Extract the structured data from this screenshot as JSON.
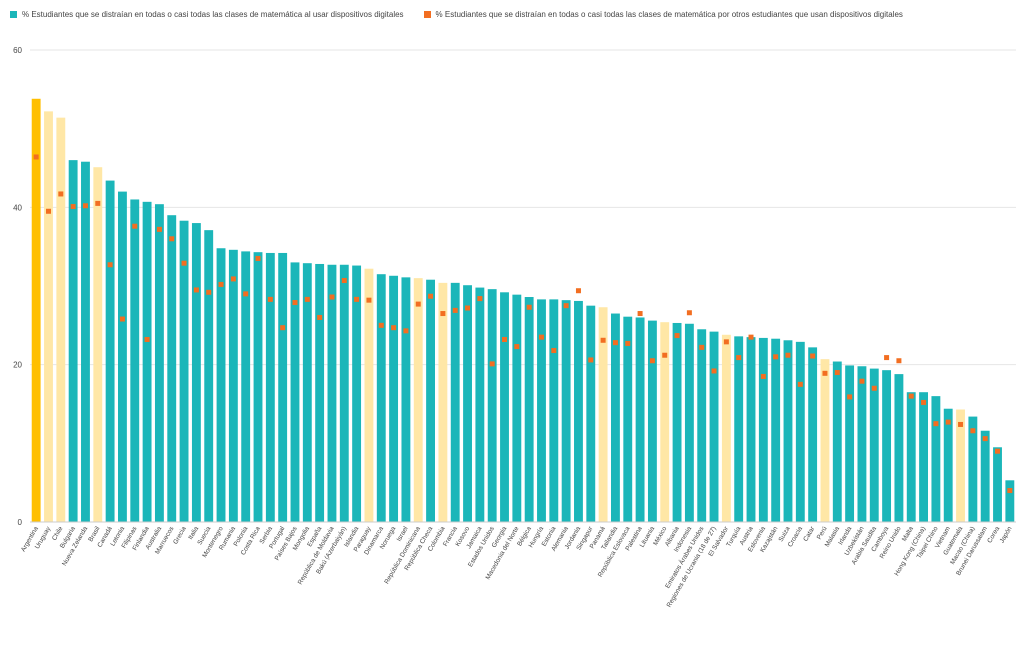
{
  "chart_data": {
    "type": "bar",
    "ylim": [
      0,
      60
    ],
    "yticks": [
      0,
      20,
      40,
      60
    ],
    "grid": true,
    "legend_position": "top-left",
    "colors": {
      "teal": "#1BB6B9",
      "highlight": "#FFE7A6",
      "argentina": "#FFBF00",
      "marker": "#F26E21",
      "grid": "#e6e6e6",
      "axis": "#444444"
    },
    "series": [
      {
        "name": "% Estudiantes que se distraían en todas o casi todas las clases de matemática al usar dispositivos digitales",
        "kind": "bar"
      },
      {
        "name": "% Estudiantes que se distraían en todas o casi todas las clases de matemática por otros estudiantes que usan dispositivos digitales",
        "kind": "marker"
      }
    ],
    "categories": [
      "Argentina",
      "Uruguay",
      "Chile",
      "Bulgaria",
      "Nueva Zelanda",
      "Brasil",
      "Canadá",
      "Letonia",
      "Filipinas",
      "Finlandia",
      "Australia",
      "Marruecos",
      "Grecia",
      "Italia",
      "Suecia",
      "Montenegro",
      "Rumania",
      "Polonia",
      "Costa Rica",
      "Serbia",
      "Portugal",
      "Países Bajos",
      "Mongolia",
      "España",
      "República de Moldavia",
      "Bakú (Azerbaiyán)",
      "Islandia",
      "Paraguay",
      "Dinamarca",
      "Noruega",
      "Israel",
      "República Dominicana",
      "República Checa",
      "Colombia",
      "Francia",
      "Kosovo",
      "Jamaica",
      "Estados Unidos",
      "Georgia",
      "Macedonia del Norte",
      "Bélgica",
      "Hungría",
      "Estonia",
      "Alemania",
      "Jordania",
      "Singapur",
      "Panamá",
      "Tailandia",
      "República Eslovaca",
      "Palestina",
      "Lituania",
      "México",
      "Albania",
      "Indonesia",
      "Emiratos Árabes Unidos",
      "Regiones de Ucrania (18 de 27)",
      "El Salvador",
      "Turquía",
      "Austria",
      "Eslovenia",
      "Kazajstán",
      "Suiza",
      "Croacia",
      "Catar",
      "Perú",
      "Malasia",
      "Irlanda",
      "Uzbekistán",
      "Arabia Saudita",
      "Camboya",
      "Reino Unido",
      "Malta",
      "Hong Kong (China)",
      "Taipei Chino",
      "Vietnam",
      "Guatemala",
      "Macao (China)",
      "Brunei Darussalam",
      "Corea",
      "Japón"
    ],
    "highlight_categories": [
      "Uruguay",
      "Chile",
      "Brasil",
      "Paraguay",
      "República Dominicana",
      "Colombia",
      "Panamá",
      "México",
      "El Salvador",
      "Perú",
      "Guatemala"
    ],
    "primary_category": "Argentina",
    "values": [
      53.8,
      52.2,
      51.4,
      46.0,
      45.8,
      45.1,
      43.4,
      42.0,
      41.0,
      40.7,
      40.4,
      39.0,
      38.3,
      38.0,
      37.1,
      34.8,
      34.6,
      34.4,
      34.3,
      34.2,
      34.2,
      33.0,
      32.9,
      32.8,
      32.7,
      32.7,
      32.6,
      32.2,
      31.5,
      31.3,
      31.1,
      31.0,
      30.8,
      30.4,
      30.4,
      30.1,
      29.8,
      29.6,
      29.2,
      28.9,
      28.6,
      28.3,
      28.3,
      28.2,
      28.1,
      27.5,
      27.3,
      26.5,
      26.1,
      26.0,
      25.6,
      25.4,
      25.3,
      25.2,
      24.5,
      24.2,
      23.8,
      23.6,
      23.5,
      23.4,
      23.3,
      23.1,
      22.9,
      22.2,
      20.7,
      20.4,
      19.9,
      19.8,
      19.5,
      19.3,
      18.8,
      16.5,
      16.5,
      16.0,
      14.4,
      14.3,
      13.4,
      11.6,
      9.5,
      5.3
    ],
    "markers": [
      46.4,
      39.5,
      41.7,
      40.1,
      40.2,
      40.5,
      32.7,
      25.8,
      37.6,
      23.2,
      37.2,
      36.0,
      32.9,
      29.5,
      29.2,
      30.2,
      30.9,
      29.0,
      33.5,
      28.3,
      24.7,
      27.9,
      28.3,
      26.0,
      28.6,
      30.7,
      28.3,
      28.2,
      25.0,
      24.7,
      24.3,
      27.7,
      28.7,
      26.5,
      26.9,
      27.2,
      28.4,
      20.1,
      23.2,
      22.3,
      27.3,
      23.5,
      21.8,
      27.5,
      29.4,
      20.6,
      23.1,
      22.8,
      22.7,
      26.5,
      20.5,
      21.2,
      23.7,
      26.6,
      22.2,
      19.2,
      22.9,
      20.9,
      23.5,
      18.5,
      21.0,
      21.2,
      17.5,
      21.1,
      18.9,
      19.0,
      15.9,
      17.9,
      17.0,
      20.9,
      20.5,
      16.0,
      15.2,
      12.5,
      12.7,
      12.4,
      11.6,
      10.6,
      9.0,
      4.0
    ]
  }
}
